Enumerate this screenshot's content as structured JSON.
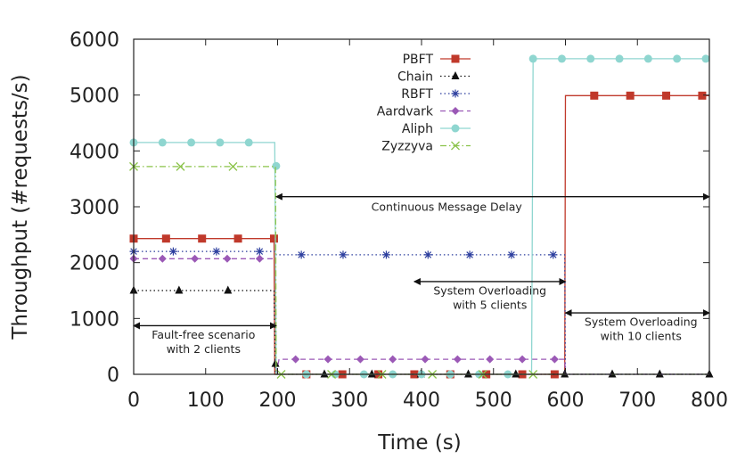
{
  "chart_data": {
    "type": "line",
    "xlabel": "Time (s)",
    "ylabel": "Throughput (#requests/s)",
    "xlim": [
      0,
      800
    ],
    "ylim": [
      0,
      6000
    ],
    "xticks": [
      0,
      100,
      200,
      300,
      400,
      500,
      600,
      700,
      800
    ],
    "yticks": [
      0,
      1000,
      2000,
      3000,
      4000,
      5000,
      6000
    ],
    "grid": false,
    "legend_position": "top-center",
    "series": [
      {
        "name": "PBFT",
        "color": "#c0392b",
        "dash": "solid",
        "marker": "square",
        "x": [
          0,
          195,
          196,
          197,
          599,
          600,
          800
        ],
        "y": [
          2430,
          2430,
          0,
          0,
          0,
          4990,
          4990
        ],
        "marker_x": [
          0,
          45,
          95,
          145,
          195,
          240,
          290,
          340,
          390,
          440,
          490,
          540,
          585,
          640,
          690,
          740,
          790
        ],
        "marker_y": [
          2430,
          2430,
          2430,
          2430,
          2430,
          0,
          0,
          0,
          0,
          0,
          0,
          0,
          0,
          4990,
          4990,
          4990,
          4990
        ]
      },
      {
        "name": "Chain",
        "color": "#111111",
        "dash": "dotted",
        "marker": "triangle",
        "x": [
          0,
          195,
          197,
          800
        ],
        "y": [
          1500,
          1500,
          0,
          0
        ],
        "marker_x": [
          0,
          63,
          131,
          197,
          265,
          331,
          399,
          465,
          531,
          599,
          665,
          731,
          800
        ],
        "marker_y": [
          1500,
          1500,
          1500,
          190,
          0,
          0,
          0,
          0,
          0,
          0,
          0,
          0,
          0
        ]
      },
      {
        "name": "RBFT",
        "color": "#2c3e9e",
        "dash": "dotted",
        "marker": "star",
        "x": [
          0,
          197,
          198,
          599,
          600,
          800
        ],
        "y": [
          2200,
          2200,
          2140,
          2140,
          0,
          0
        ],
        "marker_x": [
          0,
          55,
          115,
          175,
          233,
          291,
          351,
          409,
          467,
          525,
          583
        ],
        "marker_y": [
          2200,
          2200,
          2200,
          2200,
          2140,
          2140,
          2140,
          2140,
          2140,
          2140,
          2140
        ]
      },
      {
        "name": "Aardvark",
        "color": "#9b59b6",
        "dash": "dashed",
        "marker": "diamond",
        "x": [
          0,
          197,
          198,
          202,
          599,
          600,
          800
        ],
        "y": [
          2070,
          2070,
          0,
          270,
          270,
          0,
          0
        ],
        "marker_x": [
          0,
          40,
          85,
          130,
          175,
          225,
          270,
          315,
          360,
          405,
          450,
          495,
          540,
          585
        ],
        "marker_y": [
          2070,
          2070,
          2070,
          2070,
          2070,
          270,
          270,
          270,
          270,
          270,
          270,
          270,
          270,
          270
        ]
      },
      {
        "name": "Aliph",
        "color": "#8fd6d0",
        "dash": "solid",
        "marker": "circle",
        "x": [
          0,
          196,
          198,
          553,
          555,
          800
        ],
        "y": [
          4150,
          4150,
          0,
          0,
          5650,
          5650
        ],
        "marker_x": [
          0,
          40,
          80,
          120,
          160,
          198,
          240,
          280,
          320,
          360,
          400,
          440,
          480,
          520,
          555,
          595,
          635,
          675,
          715,
          755,
          795
        ],
        "marker_y": [
          4150,
          4150,
          4150,
          4150,
          4150,
          3730,
          0,
          0,
          0,
          0,
          0,
          0,
          0,
          0,
          5650,
          5650,
          5650,
          5650,
          5650,
          5650,
          5650
        ]
      },
      {
        "name": "Zyzzyva",
        "color": "#8bc34a",
        "dash": "dashdot",
        "marker": "x",
        "x": [
          0,
          197,
          198,
          800
        ],
        "y": [
          3720,
          3720,
          0,
          0
        ],
        "marker_x": [
          0,
          65,
          138,
          205,
          275,
          345,
          415,
          485,
          555
        ],
        "marker_y": [
          3720,
          3720,
          3720,
          0,
          0,
          0,
          0,
          0,
          0
        ]
      }
    ],
    "annotations": [
      {
        "lines": [
          "Continuous Message Delay"
        ],
        "arrow_x": [
          198,
          800
        ],
        "arrow_y": 3180,
        "text_x": 435,
        "text_y": 2930
      },
      {
        "lines": [
          "System Overloading",
          "with 5 clients"
        ],
        "arrow_x": [
          390,
          600
        ],
        "arrow_y": 1660,
        "text_x": 495,
        "text_y": 1430
      },
      {
        "lines": [
          "System Overloading",
          "with 10 clients"
        ],
        "arrow_x": [
          600,
          800
        ],
        "arrow_y": 1100,
        "text_x": 705,
        "text_y": 870
      },
      {
        "lines": [
          "Fault-free scenario",
          "with 2 clients"
        ],
        "arrow_x": [
          0,
          198
        ],
        "arrow_y": 870,
        "text_x": 97,
        "text_y": 640
      }
    ]
  }
}
